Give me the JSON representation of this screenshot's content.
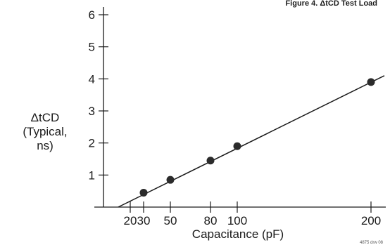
{
  "figure": {
    "caption": "Figure 4. ΔtCD Test Load",
    "footnote": "4875 drw 08"
  },
  "chart_data": {
    "type": "line",
    "xlabel": "Capacitance (pF)",
    "ylabel_lines": [
      "ΔtCD",
      "(Typical,",
      "ns)"
    ],
    "xlim": [
      0,
      200
    ],
    "ylim": [
      0,
      6
    ],
    "x_ticks": [
      20,
      30,
      50,
      80,
      100,
      200
    ],
    "y_ticks": [
      1,
      2,
      3,
      4,
      5,
      6
    ],
    "series": [
      {
        "x": [
          30,
          50,
          80,
          100,
          200
        ],
        "y": [
          0.45,
          0.85,
          1.45,
          1.9,
          3.9
        ],
        "markers": true
      }
    ],
    "trend_line": {
      "x": [
        11,
        210
      ],
      "y": [
        0.0,
        4.1
      ]
    },
    "colors": {
      "line": "#1a1a1a",
      "marker": "#2b2b2b",
      "axis": "#1a1a1a"
    }
  }
}
